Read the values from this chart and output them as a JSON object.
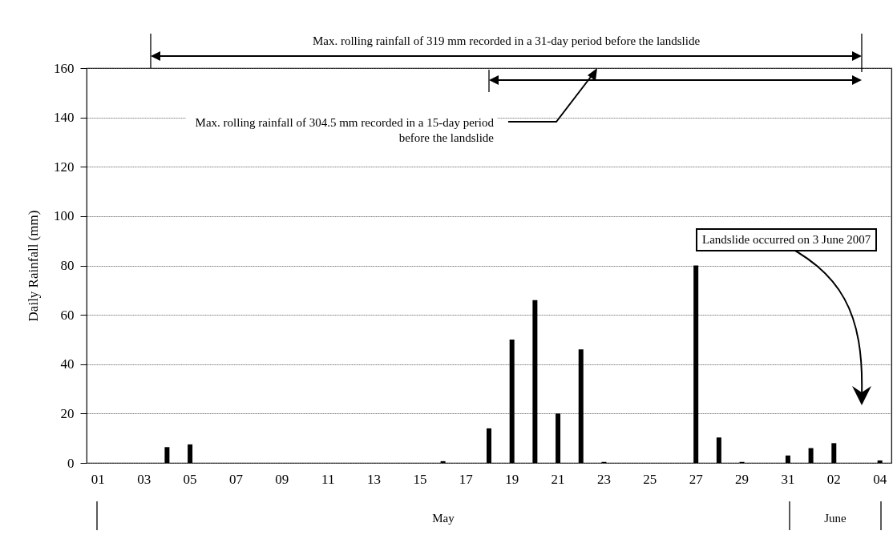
{
  "chart_data": {
    "type": "bar",
    "ylabel": "Daily Rainfall (mm)",
    "categories": [
      "01",
      null,
      "03",
      null,
      "05",
      null,
      "07",
      null,
      "09",
      null,
      "11",
      null,
      "13",
      null,
      "15",
      null,
      "17",
      null,
      "19",
      null,
      "21",
      null,
      "23",
      null,
      "25",
      null,
      "27",
      null,
      "29",
      null,
      "31",
      null,
      "02",
      null,
      "04"
    ],
    "values": [
      0,
      0,
      0,
      6.4,
      7.5,
      0,
      0,
      0,
      0,
      0,
      0,
      0,
      0,
      0,
      0,
      0.7,
      0,
      14,
      50,
      66,
      20,
      46,
      0.4,
      0,
      0,
      0,
      80,
      10.3,
      0.4,
      0,
      3,
      6,
      8,
      0,
      1
    ],
    "color": "#000000",
    "ylim": [
      0,
      160
    ],
    "yticks": [
      0,
      20,
      40,
      60,
      80,
      100,
      120,
      140,
      160
    ],
    "grid": "y",
    "annotations": [
      "Max. rolling rainfall of 319 mm recorded in a 31-day period before the landslide",
      "Max. rolling rainfall of 304.5 mm recorded in a 15-day period before the landslide",
      "Landslide occurred on 3 June 2007",
      "May",
      "June"
    ]
  }
}
